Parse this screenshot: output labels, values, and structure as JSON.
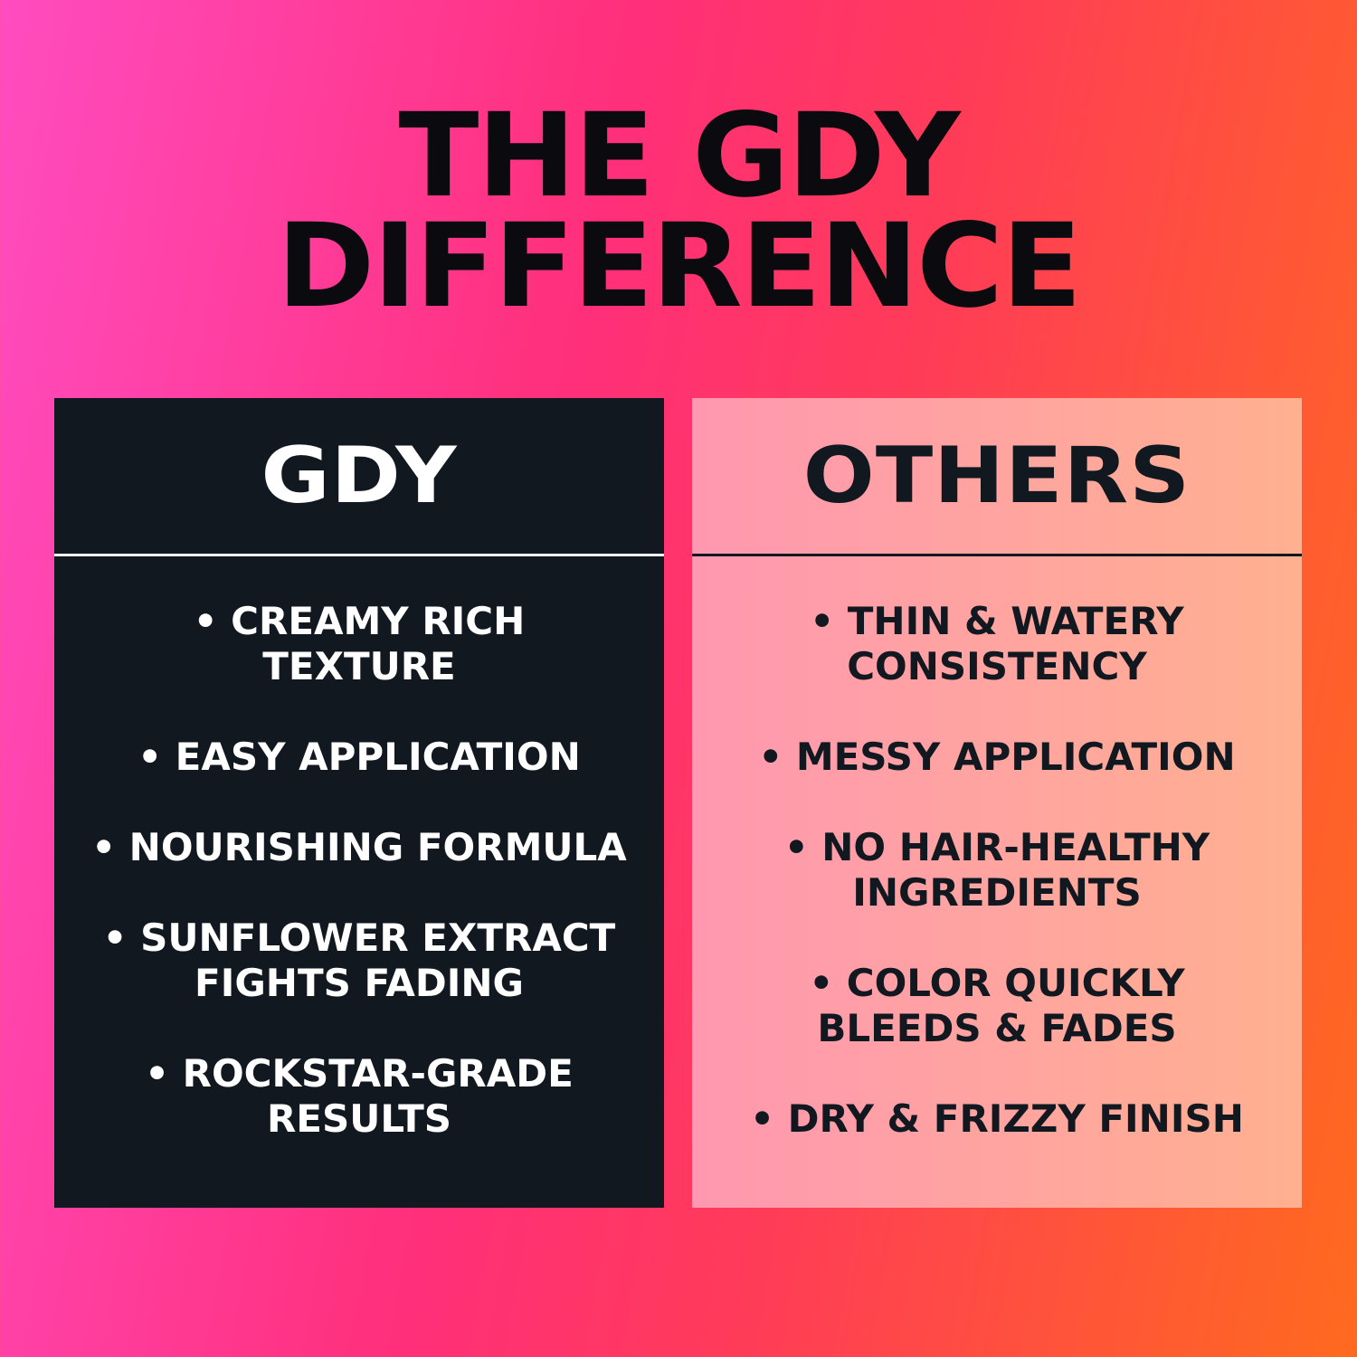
{
  "title": {
    "line1": "THE GDY",
    "line2": "DIFFERENCE"
  },
  "colors": {
    "dark_panel": "#121820",
    "light_panel_start": "#ff98b0",
    "light_panel_end": "#ffb090",
    "bg_left": "#ff4cc0",
    "bg_right": "#ff6a1e"
  },
  "gdy": {
    "heading": "GDY",
    "items": [
      "• CREAMY RICH\nTEXTURE",
      "• EASY APPLICATION",
      "• NOURISHING FORMULA",
      "• SUNFLOWER EXTRACT\nFIGHTS FADING",
      "• ROCKSTAR-GRADE\nRESULTS"
    ]
  },
  "others": {
    "heading": "OTHERS",
    "items": [
      "• THIN & WATERY\nCONSISTENCY",
      "• MESSY APPLICATION",
      "• NO HAIR-HEALTHY\nINGREDIENTS",
      "• COLOR QUICKLY\nBLEEDS & FADES",
      "• DRY & FRIZZY FINISH"
    ]
  }
}
